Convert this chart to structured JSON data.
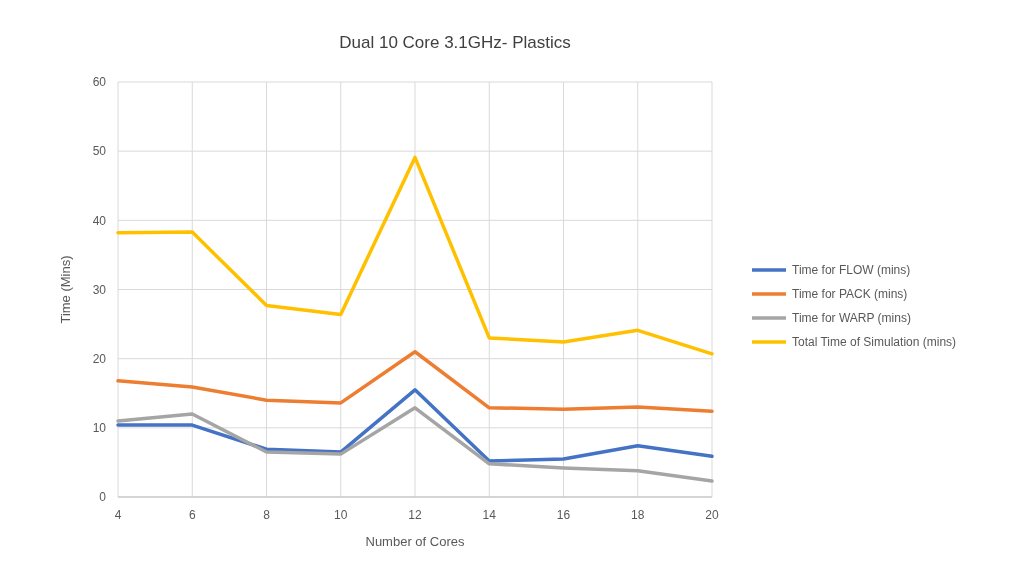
{
  "chart_data": {
    "type": "line",
    "title": "Dual 10 Core 3.1GHz- Plastics",
    "xlabel": "Number of Cores",
    "ylabel": "Time (Mins)",
    "x": [
      4,
      6,
      8,
      10,
      12,
      14,
      16,
      18,
      20
    ],
    "series": [
      {
        "name": "Time for FLOW (mins)",
        "color": "#4472c4",
        "values": [
          10.4,
          10.4,
          6.9,
          6.5,
          15.5,
          5.2,
          5.5,
          7.4,
          5.9
        ]
      },
      {
        "name": "Time for PACK (mins)",
        "color": "#ed7d31",
        "values": [
          16.8,
          15.9,
          14.0,
          13.6,
          21.0,
          12.9,
          12.7,
          13.0,
          12.4
        ]
      },
      {
        "name": "Time for WARP (mins)",
        "color": "#a5a5a5",
        "values": [
          11.0,
          12.0,
          6.5,
          6.2,
          12.9,
          4.8,
          4.2,
          3.8,
          2.3
        ]
      },
      {
        "name": "Total Time of Simulation (mins)",
        "color": "#ffc000",
        "values": [
          38.2,
          38.3,
          27.7,
          26.4,
          49.1,
          23.0,
          22.4,
          24.1,
          20.7
        ]
      }
    ],
    "xlim": [
      4,
      20
    ],
    "xticks": [
      4,
      6,
      8,
      10,
      12,
      14,
      16,
      18,
      20
    ],
    "ylim": [
      0,
      60
    ],
    "yticks": [
      0,
      10,
      20,
      30,
      40,
      50,
      60
    ],
    "grid": true,
    "legend": "right",
    "marker": "none",
    "line_style": "solid"
  }
}
